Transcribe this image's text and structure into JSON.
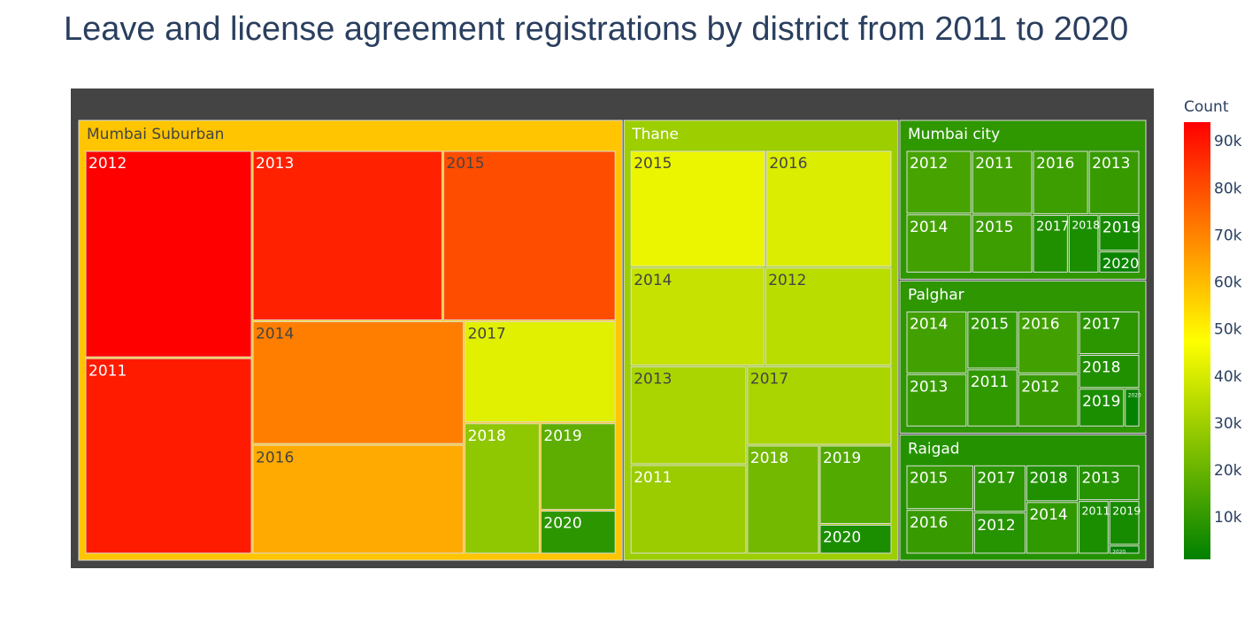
{
  "chart_data": {
    "type": "treemap",
    "title": "Leave and license agreement registrations by district from 2011 to 2020",
    "colorbar": {
      "title": "Count",
      "range": [
        1000,
        94000
      ],
      "ticks": [
        10000,
        20000,
        30000,
        40000,
        50000,
        60000,
        70000,
        80000,
        90000
      ],
      "tick_labels": [
        "10k",
        "20k",
        "30k",
        "40k",
        "50k",
        "60k",
        "70k",
        "80k",
        "90k"
      ],
      "colorscale": [
        "#008000",
        "#ffff00",
        "#ff0000"
      ]
    },
    "groups": [
      {
        "name": "Mumbai Suburban",
        "items": [
          {
            "label": "2012",
            "value": 94000
          },
          {
            "label": "2011",
            "value": 89000
          },
          {
            "label": "2013",
            "value": 88000
          },
          {
            "label": "2015",
            "value": 80000
          },
          {
            "label": "2014",
            "value": 71000
          },
          {
            "label": "2016",
            "value": 63000
          },
          {
            "label": "2017",
            "value": 42000
          },
          {
            "label": "2018",
            "value": 27000
          },
          {
            "label": "2019",
            "value": 18000
          },
          {
            "label": "2020",
            "value": 9000
          }
        ]
      },
      {
        "name": "Thane",
        "items": [
          {
            "label": "2015",
            "value": 44000
          },
          {
            "label": "2016",
            "value": 41000
          },
          {
            "label": "2014",
            "value": 37000
          },
          {
            "label": "2012",
            "value": 35000
          },
          {
            "label": "2013",
            "value": 32000
          },
          {
            "label": "2011",
            "value": 29000
          },
          {
            "label": "2017",
            "value": 32000
          },
          {
            "label": "2018",
            "value": 22000
          },
          {
            "label": "2019",
            "value": 16000
          },
          {
            "label": "2020",
            "value": 6000
          }
        ]
      },
      {
        "name": "Mumbai city",
        "items": [
          {
            "label": "2012",
            "value": 14000
          },
          {
            "label": "2014",
            "value": 13000
          },
          {
            "label": "2011",
            "value": 13000
          },
          {
            "label": "2015",
            "value": 12000
          },
          {
            "label": "2016",
            "value": 12000
          },
          {
            "label": "2013",
            "value": 11000
          },
          {
            "label": "2017",
            "value": 7000
          },
          {
            "label": "2018",
            "value": 6000
          },
          {
            "label": "2019",
            "value": 5000
          },
          {
            "label": "2020",
            "value": 3000
          }
        ]
      },
      {
        "name": "Palghar",
        "items": [
          {
            "label": "2014",
            "value": 13000
          },
          {
            "label": "2013",
            "value": 11000
          },
          {
            "label": "2015",
            "value": 10000
          },
          {
            "label": "2011",
            "value": 10000
          },
          {
            "label": "2016",
            "value": 13000
          },
          {
            "label": "2012",
            "value": 11000
          },
          {
            "label": "2017",
            "value": 9000
          },
          {
            "label": "2018",
            "value": 7000
          },
          {
            "label": "2019",
            "value": 6000
          },
          {
            "label": "2020",
            "value": 2000
          }
        ]
      },
      {
        "name": "Raigad",
        "items": [
          {
            "label": "2015",
            "value": 11000
          },
          {
            "label": "2016",
            "value": 11000
          },
          {
            "label": "2017",
            "value": 9000
          },
          {
            "label": "2012",
            "value": 8000
          },
          {
            "label": "2018",
            "value": 7000
          },
          {
            "label": "2014",
            "value": 10000
          },
          {
            "label": "2013",
            "value": 8000
          },
          {
            "label": "2011",
            "value": 6000
          },
          {
            "label": "2019",
            "value": 5000
          },
          {
            "label": "2020",
            "value": 1000
          }
        ]
      }
    ]
  }
}
